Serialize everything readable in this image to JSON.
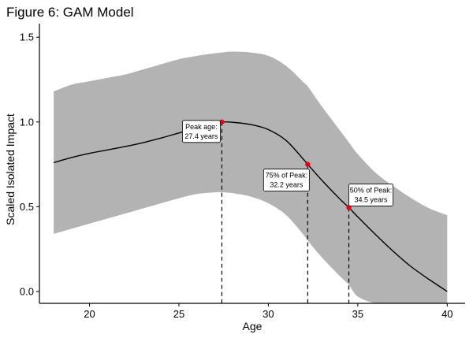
{
  "chart_data": {
    "type": "line",
    "title": "Figure 6: GAM Model",
    "xlabel": "Age",
    "ylabel": "Scaled Isolated Impact",
    "xlim": [
      17.2,
      41
    ],
    "ylim": [
      -0.07,
      1.58
    ],
    "xticks": [
      20,
      25,
      30,
      35,
      40
    ],
    "yticks": [
      0.0,
      0.5,
      1.0,
      1.5
    ],
    "xtick_labels": [
      "20",
      "25",
      "30",
      "35",
      "40"
    ],
    "ytick_labels": [
      "0.0",
      "0.5",
      "1.0",
      "1.5"
    ],
    "grid": false,
    "colors": {
      "line": "#000000",
      "band": "#b3b3b3",
      "point": "#e3001b"
    },
    "series": [
      {
        "x": [
          18,
          19,
          20,
          21,
          22,
          23,
          24,
          25,
          26,
          27,
          27.4,
          28,
          29,
          30,
          31,
          32,
          32.2,
          33,
          34,
          34.5,
          35,
          36,
          37,
          38,
          39,
          40
        ],
        "y": [
          0.76,
          0.79,
          0.815,
          0.835,
          0.855,
          0.878,
          0.905,
          0.935,
          0.965,
          0.99,
          1.0,
          0.998,
          0.985,
          0.955,
          0.89,
          0.775,
          0.75,
          0.655,
          0.545,
          0.495,
          0.44,
          0.335,
          0.235,
          0.145,
          0.07,
          0.0
        ]
      }
    ],
    "confidence_band": {
      "x": [
        18,
        19,
        20,
        21,
        22,
        23,
        24,
        25,
        26,
        27,
        27.4,
        28,
        29,
        30,
        31,
        32,
        32.2,
        33,
        34,
        34.5,
        35,
        36,
        37,
        38,
        39,
        40
      ],
      "upper": [
        1.18,
        1.22,
        1.24,
        1.26,
        1.28,
        1.31,
        1.34,
        1.37,
        1.39,
        1.405,
        1.41,
        1.415,
        1.41,
        1.39,
        1.33,
        1.23,
        1.21,
        1.09,
        0.95,
        0.88,
        0.81,
        0.7,
        0.62,
        0.55,
        0.49,
        0.45
      ],
      "lower": [
        0.34,
        0.37,
        0.4,
        0.43,
        0.46,
        0.49,
        0.52,
        0.55,
        0.575,
        0.585,
        0.585,
        0.58,
        0.56,
        0.52,
        0.45,
        0.33,
        0.3,
        0.2,
        0.09,
        0.04,
        -0.03,
        -0.07,
        -0.07,
        -0.07,
        -0.07,
        -0.07
      ]
    },
    "annotations": [
      {
        "label_line1": "Peak age:",
        "label_line2": "27.4 years",
        "x": 27.4,
        "y": 1.0
      },
      {
        "label_line1": "75% of Peak:",
        "label_line2": "32.2 years",
        "x": 32.2,
        "y": 0.75
      },
      {
        "label_line1": "50% of Peak:",
        "label_line2": "34.5 years",
        "x": 34.5,
        "y": 0.495
      }
    ]
  }
}
